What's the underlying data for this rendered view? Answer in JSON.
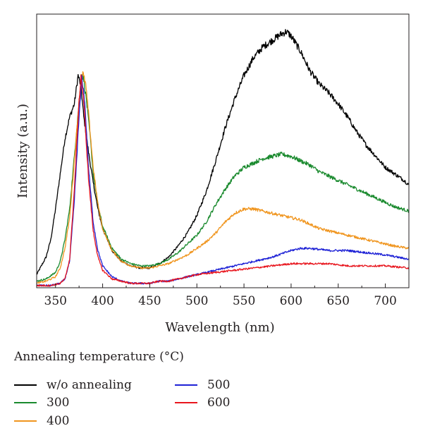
{
  "chart_data": {
    "type": "line",
    "title": "",
    "xlabel": "Wavelength (nm)",
    "ylabel": "Intensity (a.u.)",
    "xlim": [
      330,
      725
    ],
    "ylim": [
      0,
      1.25
    ],
    "x_ticks": [
      350,
      400,
      450,
      500,
      550,
      600,
      650,
      700
    ],
    "grid": false,
    "legend": {
      "title": "Annealing temperature (°C)",
      "placement": "bottom"
    },
    "series": [
      {
        "name": "w/o annealing",
        "color": "#000000",
        "points": [
          [
            330,
            0.06
          ],
          [
            335,
            0.1
          ],
          [
            340,
            0.14
          ],
          [
            345,
            0.22
          ],
          [
            350,
            0.36
          ],
          [
            355,
            0.52
          ],
          [
            360,
            0.68
          ],
          [
            365,
            0.78
          ],
          [
            370,
            0.84
          ],
          [
            374,
            0.97
          ],
          [
            377,
            0.92
          ],
          [
            380,
            0.78
          ],
          [
            385,
            0.62
          ],
          [
            390,
            0.48
          ],
          [
            395,
            0.36
          ],
          [
            400,
            0.27
          ],
          [
            410,
            0.17
          ],
          [
            420,
            0.12
          ],
          [
            430,
            0.1
          ],
          [
            440,
            0.09
          ],
          [
            450,
            0.09
          ],
          [
            460,
            0.11
          ],
          [
            470,
            0.14
          ],
          [
            480,
            0.19
          ],
          [
            490,
            0.25
          ],
          [
            500,
            0.33
          ],
          [
            510,
            0.44
          ],
          [
            520,
            0.58
          ],
          [
            530,
            0.73
          ],
          [
            540,
            0.86
          ],
          [
            550,
            0.97
          ],
          [
            560,
            1.05
          ],
          [
            570,
            1.1
          ],
          [
            580,
            1.13
          ],
          [
            590,
            1.16
          ],
          [
            595,
            1.17
          ],
          [
            600,
            1.15
          ],
          [
            610,
            1.08
          ],
          [
            620,
            0.99
          ],
          [
            630,
            0.93
          ],
          [
            640,
            0.89
          ],
          [
            650,
            0.84
          ],
          [
            660,
            0.78
          ],
          [
            670,
            0.71
          ],
          [
            680,
            0.65
          ],
          [
            690,
            0.6
          ],
          [
            700,
            0.55
          ],
          [
            710,
            0.52
          ],
          [
            720,
            0.49
          ],
          [
            725,
            0.47
          ]
        ]
      },
      {
        "name": "300",
        "color": "#1a8a2e",
        "points": [
          [
            330,
            0.03
          ],
          [
            340,
            0.04
          ],
          [
            350,
            0.07
          ],
          [
            355,
            0.12
          ],
          [
            360,
            0.22
          ],
          [
            365,
            0.36
          ],
          [
            370,
            0.6
          ],
          [
            375,
            0.85
          ],
          [
            378,
            0.98
          ],
          [
            380,
            0.95
          ],
          [
            383,
            0.85
          ],
          [
            387,
            0.68
          ],
          [
            390,
            0.52
          ],
          [
            395,
            0.38
          ],
          [
            400,
            0.28
          ],
          [
            410,
            0.18
          ],
          [
            420,
            0.13
          ],
          [
            430,
            0.11
          ],
          [
            440,
            0.1
          ],
          [
            450,
            0.1
          ],
          [
            460,
            0.11
          ],
          [
            470,
            0.13
          ],
          [
            480,
            0.16
          ],
          [
            490,
            0.2
          ],
          [
            500,
            0.24
          ],
          [
            510,
            0.3
          ],
          [
            520,
            0.38
          ],
          [
            530,
            0.45
          ],
          [
            540,
            0.51
          ],
          [
            550,
            0.55
          ],
          [
            560,
            0.57
          ],
          [
            570,
            0.59
          ],
          [
            580,
            0.6
          ],
          [
            590,
            0.61
          ],
          [
            600,
            0.6
          ],
          [
            610,
            0.58
          ],
          [
            620,
            0.56
          ],
          [
            630,
            0.53
          ],
          [
            640,
            0.51
          ],
          [
            650,
            0.49
          ],
          [
            660,
            0.47
          ],
          [
            670,
            0.45
          ],
          [
            680,
            0.43
          ],
          [
            690,
            0.41
          ],
          [
            700,
            0.39
          ],
          [
            710,
            0.37
          ],
          [
            725,
            0.35
          ]
        ]
      },
      {
        "name": "400",
        "color": "#f0951e",
        "points": [
          [
            330,
            0.02
          ],
          [
            340,
            0.03
          ],
          [
            350,
            0.05
          ],
          [
            355,
            0.09
          ],
          [
            360,
            0.18
          ],
          [
            365,
            0.32
          ],
          [
            370,
            0.58
          ],
          [
            375,
            0.85
          ],
          [
            379,
            0.98
          ],
          [
            382,
            0.93
          ],
          [
            385,
            0.8
          ],
          [
            390,
            0.55
          ],
          [
            395,
            0.38
          ],
          [
            400,
            0.27
          ],
          [
            410,
            0.17
          ],
          [
            420,
            0.12
          ],
          [
            430,
            0.1
          ],
          [
            440,
            0.09
          ],
          [
            450,
            0.09
          ],
          [
            460,
            0.1
          ],
          [
            470,
            0.11
          ],
          [
            480,
            0.13
          ],
          [
            490,
            0.15
          ],
          [
            500,
            0.18
          ],
          [
            510,
            0.21
          ],
          [
            520,
            0.25
          ],
          [
            530,
            0.3
          ],
          [
            540,
            0.34
          ],
          [
            550,
            0.36
          ],
          [
            560,
            0.36
          ],
          [
            570,
            0.35
          ],
          [
            580,
            0.34
          ],
          [
            590,
            0.33
          ],
          [
            600,
            0.32
          ],
          [
            610,
            0.31
          ],
          [
            620,
            0.29
          ],
          [
            630,
            0.27
          ],
          [
            640,
            0.26
          ],
          [
            650,
            0.25
          ],
          [
            660,
            0.24
          ],
          [
            670,
            0.23
          ],
          [
            680,
            0.22
          ],
          [
            690,
            0.21
          ],
          [
            700,
            0.2
          ],
          [
            710,
            0.19
          ],
          [
            725,
            0.18
          ]
        ]
      },
      {
        "name": "500",
        "color": "#1e22d6",
        "points": [
          [
            330,
            0.01
          ],
          [
            345,
            0.01
          ],
          [
            355,
            0.02
          ],
          [
            360,
            0.04
          ],
          [
            365,
            0.12
          ],
          [
            370,
            0.4
          ],
          [
            375,
            0.78
          ],
          [
            378,
            0.96
          ],
          [
            381,
            0.85
          ],
          [
            385,
            0.55
          ],
          [
            390,
            0.3
          ],
          [
            395,
            0.17
          ],
          [
            400,
            0.1
          ],
          [
            410,
            0.05
          ],
          [
            420,
            0.03
          ],
          [
            430,
            0.02
          ],
          [
            440,
            0.02
          ],
          [
            450,
            0.02
          ],
          [
            460,
            0.03
          ],
          [
            470,
            0.03
          ],
          [
            480,
            0.04
          ],
          [
            490,
            0.05
          ],
          [
            500,
            0.06
          ],
          [
            520,
            0.08
          ],
          [
            540,
            0.1
          ],
          [
            560,
            0.12
          ],
          [
            580,
            0.14
          ],
          [
            600,
            0.17
          ],
          [
            610,
            0.18
          ],
          [
            620,
            0.18
          ],
          [
            640,
            0.17
          ],
          [
            660,
            0.17
          ],
          [
            680,
            0.16
          ],
          [
            700,
            0.15
          ],
          [
            725,
            0.13
          ]
        ]
      },
      {
        "name": "600",
        "color": "#e8161e",
        "points": [
          [
            330,
            0.01
          ],
          [
            345,
            0.01
          ],
          [
            355,
            0.02
          ],
          [
            360,
            0.04
          ],
          [
            365,
            0.13
          ],
          [
            370,
            0.45
          ],
          [
            375,
            0.85
          ],
          [
            377,
            0.97
          ],
          [
            380,
            0.85
          ],
          [
            385,
            0.5
          ],
          [
            390,
            0.26
          ],
          [
            395,
            0.14
          ],
          [
            400,
            0.08
          ],
          [
            410,
            0.04
          ],
          [
            420,
            0.03
          ],
          [
            430,
            0.02
          ],
          [
            440,
            0.02
          ],
          [
            450,
            0.02
          ],
          [
            460,
            0.03
          ],
          [
            470,
            0.03
          ],
          [
            480,
            0.04
          ],
          [
            490,
            0.05
          ],
          [
            500,
            0.06
          ],
          [
            520,
            0.07
          ],
          [
            540,
            0.08
          ],
          [
            560,
            0.09
          ],
          [
            580,
            0.1
          ],
          [
            600,
            0.11
          ],
          [
            620,
            0.11
          ],
          [
            640,
            0.11
          ],
          [
            660,
            0.1
          ],
          [
            680,
            0.1
          ],
          [
            700,
            0.1
          ],
          [
            725,
            0.09
          ]
        ]
      }
    ]
  }
}
